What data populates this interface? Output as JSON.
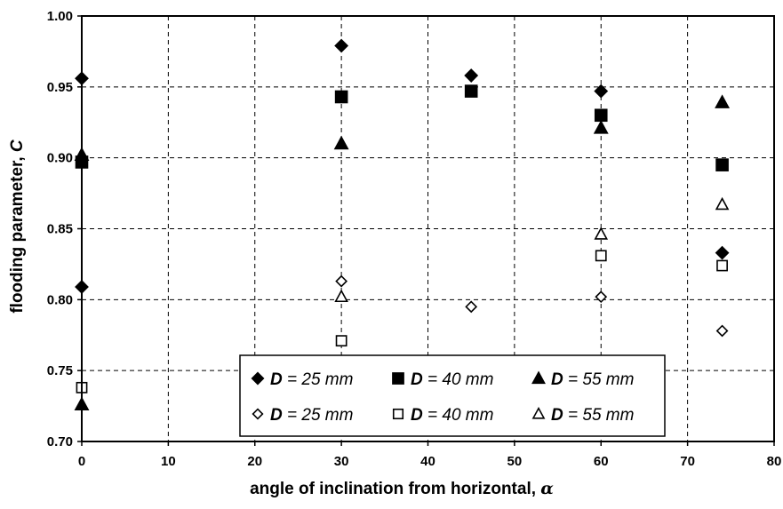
{
  "chart_data": {
    "type": "scatter",
    "xlabel": "angle of inclination from horizontal,",
    "xlabel_symbol": "α",
    "ylabel": "flooding parameter,",
    "ylabel_symbol": "C",
    "xlim": [
      0,
      80
    ],
    "ylim": [
      0.7,
      1.0
    ],
    "x_ticks": [
      "0",
      "10",
      "20",
      "30",
      "40",
      "50",
      "60",
      "70",
      "80"
    ],
    "y_ticks": [
      "0.70",
      "0.75",
      "0.80",
      "0.85",
      "0.90",
      "0.95",
      "1.00"
    ],
    "grid": true,
    "grid_style": "dashed",
    "legend_position": "bottom-right",
    "legend_symbol_label": "D",
    "series": [
      {
        "name": "= 25 mm",
        "marker": "diamond",
        "filled": true,
        "points": [
          [
            0,
            0.956
          ],
          [
            0,
            0.809
          ],
          [
            30,
            0.979
          ],
          [
            45,
            0.958
          ],
          [
            60,
            0.947
          ],
          [
            74,
            0.833
          ]
        ]
      },
      {
        "name": "= 40 mm",
        "marker": "square",
        "filled": true,
        "points": [
          [
            0,
            0.897
          ],
          [
            30,
            0.943
          ],
          [
            45,
            0.947
          ],
          [
            60,
            0.93
          ],
          [
            74,
            0.895
          ]
        ]
      },
      {
        "name": "= 55 mm",
        "marker": "triangle",
        "filled": true,
        "points": [
          [
            0,
            0.902
          ],
          [
            0,
            0.726
          ],
          [
            30,
            0.91
          ],
          [
            60,
            0.921
          ],
          [
            74,
            0.939
          ]
        ]
      },
      {
        "name": "= 25 mm",
        "marker": "diamond",
        "filled": false,
        "points": [
          [
            30,
            0.813
          ],
          [
            45,
            0.795
          ],
          [
            60,
            0.802
          ],
          [
            74,
            0.778
          ]
        ]
      },
      {
        "name": "= 40 mm",
        "marker": "square",
        "filled": false,
        "points": [
          [
            0,
            0.738
          ],
          [
            30,
            0.771
          ],
          [
            60,
            0.831
          ],
          [
            74,
            0.824
          ]
        ]
      },
      {
        "name": "= 55 mm",
        "marker": "triangle",
        "filled": false,
        "points": [
          [
            30,
            0.802
          ],
          [
            60,
            0.846
          ],
          [
            74,
            0.867
          ]
        ]
      }
    ]
  }
}
